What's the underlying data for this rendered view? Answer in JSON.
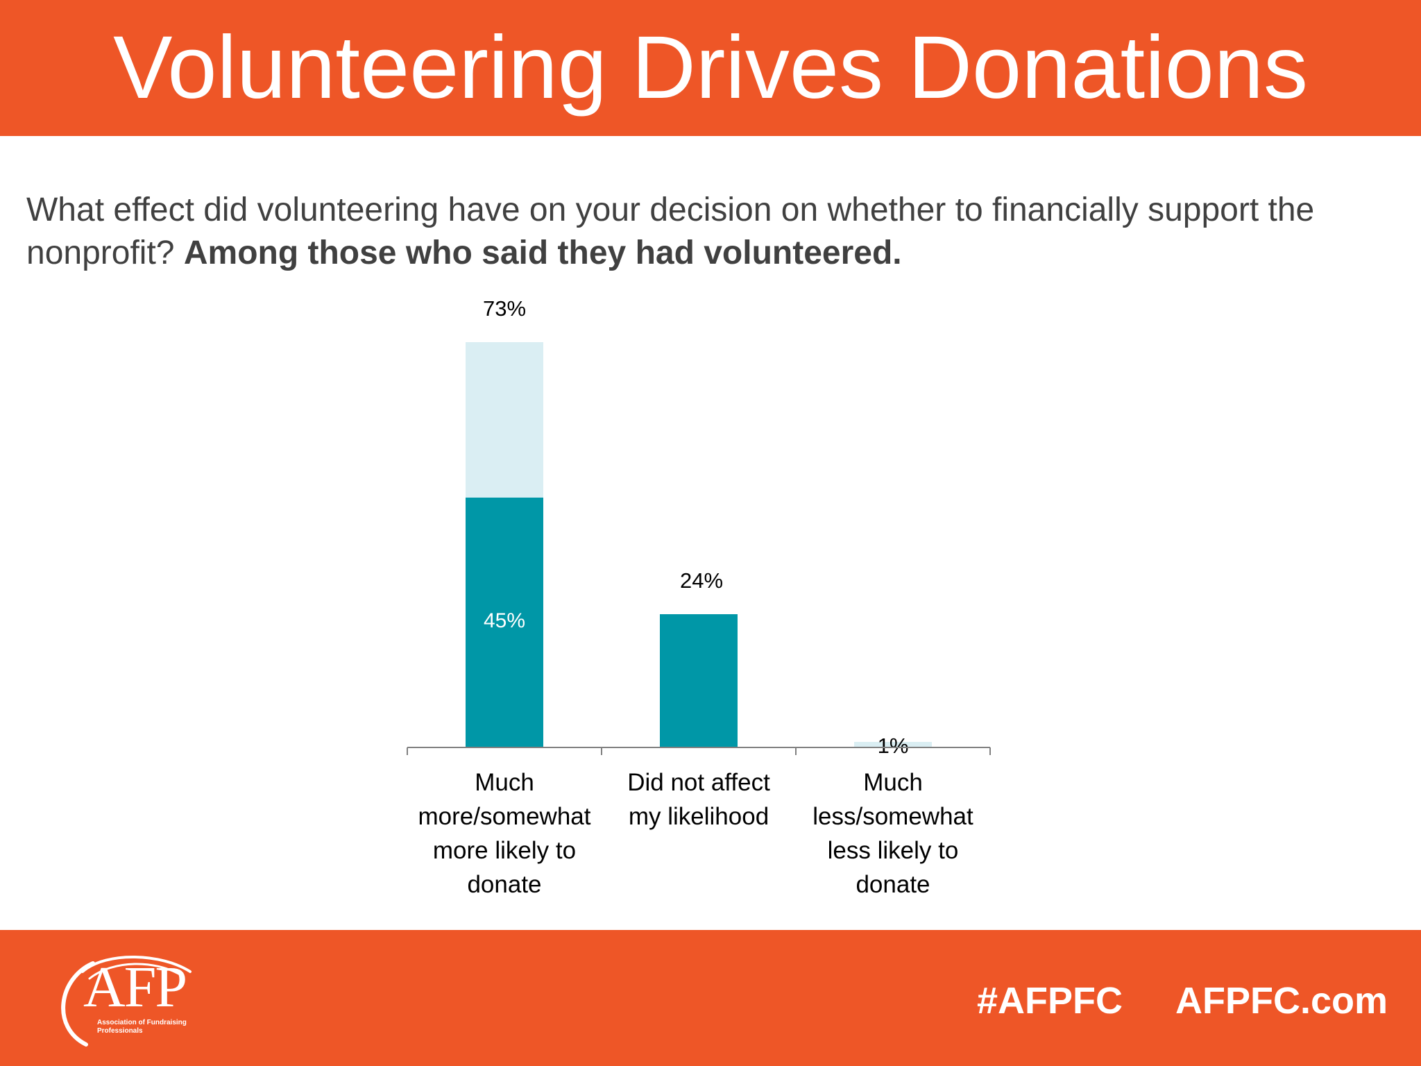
{
  "header": {
    "title": "Volunteering Drives Donations"
  },
  "question": {
    "text": "What effect did volunteering have on your decision on whether to financially support the nonprofit?",
    "emphasis": "Among those who said they had volunteered."
  },
  "chart_data": {
    "type": "bar",
    "stacked": true,
    "categories": [
      "Much more/somewhat more likely to donate",
      "Did not affect my likelihood",
      "Much less/somewhat less likely to donate"
    ],
    "category_lines": [
      [
        "Much",
        "more/somewhat",
        "more likely to",
        "donate"
      ],
      [
        "Did not affect",
        "my likelihood"
      ],
      [
        "Much",
        "less/somewhat",
        "less likely to",
        "donate"
      ]
    ],
    "series": [
      {
        "values": [
          45,
          24,
          0
        ],
        "color": "#0097a7"
      },
      {
        "values": [
          28,
          0,
          1
        ],
        "color": "#daeef3"
      }
    ],
    "totals": [
      73,
      24,
      1
    ],
    "total_labels": [
      "73%",
      "24%",
      "1%"
    ],
    "inner_labels": [
      "45%",
      "",
      ""
    ],
    "ylim": [
      0,
      73
    ],
    "grid": false,
    "legend": "none"
  },
  "footer": {
    "logo_text": "AFP",
    "logo_subtext": "Association of Fundraising Professionals",
    "hashtag": "#AFPFC",
    "website": "AFPFC.com"
  },
  "colors": {
    "brand": "#ee5627",
    "bar_primary": "#0097a7",
    "bar_secondary": "#daeef3"
  }
}
